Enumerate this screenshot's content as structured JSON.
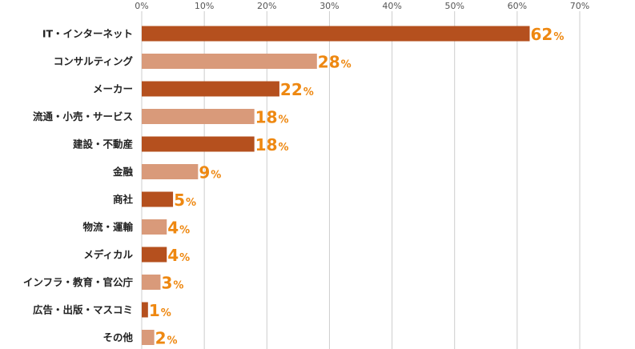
{
  "chart_data": {
    "type": "bar",
    "orientation": "horizontal",
    "categories": [
      "IT・インターネット",
      "コンサルティング",
      "メーカー",
      "流通・小売・サービス",
      "建設・不動産",
      "金融",
      "商社",
      "物流・運輸",
      "メディカル",
      "インフラ・教育・官公庁",
      "広告・出版・マスコミ",
      "その他"
    ],
    "values": [
      62,
      28,
      22,
      18,
      18,
      9,
      5,
      4,
      4,
      3,
      1,
      2
    ],
    "value_suffix": "%",
    "xlim": [
      0,
      70
    ],
    "xticks": [
      "0%",
      "10%",
      "20%",
      "30%",
      "40%",
      "50%",
      "60%",
      "70%"
    ],
    "grid": true,
    "colors": {
      "bar_dark": "#b5501e",
      "bar_light": "#d99a7a",
      "value_label": "#ee8811",
      "grid": "#cccccc"
    }
  }
}
